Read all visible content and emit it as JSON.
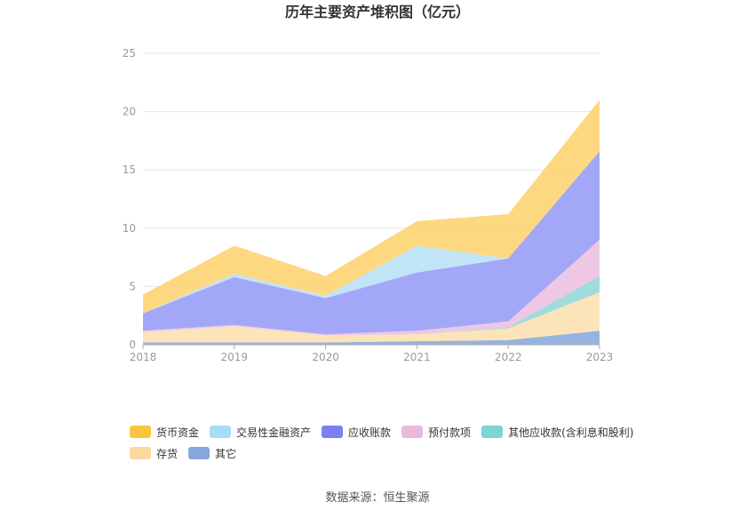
{
  "chart_data": {
    "type": "area",
    "stacked": true,
    "title": "历年主要资产堆积图（亿元）",
    "x": [
      "2018",
      "2019",
      "2020",
      "2021",
      "2022",
      "2023"
    ],
    "ylim": [
      0,
      25
    ],
    "yticks": [
      0,
      5,
      10,
      15,
      20,
      25
    ],
    "grid": true,
    "legend_position": "bottom-left",
    "series": [
      {
        "name": "其它",
        "color": "#8fb0dd",
        "values": [
          0.2,
          0.2,
          0.2,
          0.3,
          0.4,
          1.2
        ]
      },
      {
        "name": "存货",
        "color": "#fde1b4",
        "values": [
          0.9,
          1.4,
          0.6,
          0.6,
          1.0,
          3.3
        ]
      },
      {
        "name": "其他应收款(含利息和股利)",
        "color": "#9bdada",
        "values": [
          0.0,
          0.0,
          0.0,
          0.0,
          0.1,
          1.4
        ]
      },
      {
        "name": "预付款项",
        "color": "#ecc4e2",
        "values": [
          0.1,
          0.1,
          0.1,
          0.3,
          0.5,
          3.1
        ]
      },
      {
        "name": "应收账款",
        "color": "#9ea2f7",
        "values": [
          1.5,
          4.1,
          3.1,
          5.0,
          5.4,
          7.6
        ]
      },
      {
        "name": "交易性金融资产",
        "color": "#bfe3f7",
        "values": [
          0.0,
          0.3,
          0.2,
          2.3,
          0.0,
          0.0
        ]
      },
      {
        "name": "货币资金",
        "color": "#fed57a",
        "values": [
          1.6,
          2.4,
          1.7,
          2.1,
          3.8,
          4.4
        ]
      }
    ]
  },
  "legend": {
    "rows": [
      [
        {
          "label": "货币资金",
          "color": "#fbc43e"
        },
        {
          "label": "交易性金融资产",
          "color": "#a8dcf7"
        },
        {
          "label": "应收账款",
          "color": "#7b7ff1"
        },
        {
          "label": "预付款项",
          "color": "#e8b8dd"
        },
        {
          "label": "其他应收款(含利息和股利)",
          "color": "#7fd3d3"
        }
      ],
      [
        {
          "label": "存货",
          "color": "#fdd8a0"
        },
        {
          "label": "其它",
          "color": "#86a7dc"
        }
      ]
    ]
  },
  "source": "数据来源：恒生聚源"
}
